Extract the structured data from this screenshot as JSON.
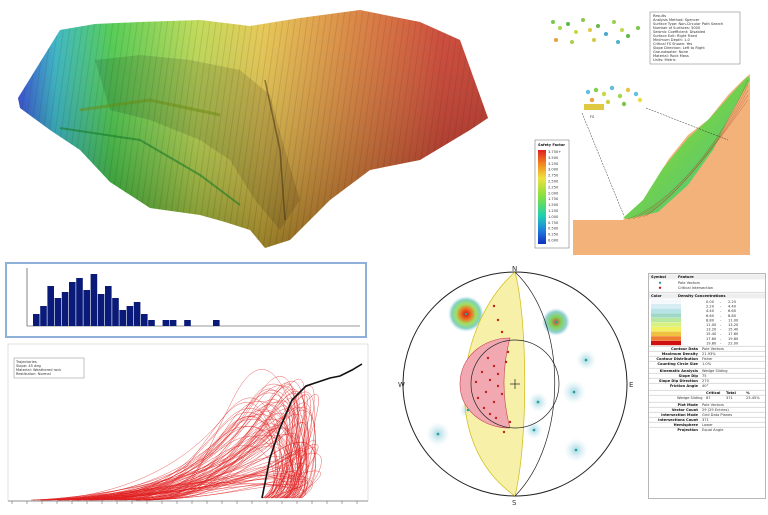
{
  "colors": {
    "terrain_low": "#1a3fd0",
    "terrain_mid": "#e0d84a",
    "terrain_high": "#c8321a",
    "soil": "#f2b27a",
    "histogram_bar": "#0a1a78",
    "histogram_frame": "#8fb0d8",
    "failure_curves": "#e02020",
    "wedge_fill": "#f7f0a8",
    "pole_zone": "#f2a8b0"
  },
  "slope_section": {
    "legend_title": "Safety Factor",
    "legend_values": [
      "0.000",
      "0.250",
      "0.500",
      "0.750",
      "1.000",
      "1.250",
      "1.500",
      "1.750",
      "2.000",
      "2.250",
      "2.500",
      "2.750",
      "3.000",
      "3.250",
      "3.500",
      "3.750+"
    ],
    "info_lines": [
      "Results",
      "Analysis Method: Spencer",
      "Surface Type: Non-Circular Path Search",
      "Number of Surfaces: 5000",
      "Seismic Coefficient: Disabled",
      "Surface Exit: Right Fixed",
      "Minimum Depth: 1.0",
      "Critical FS Shown: Yes",
      "Slope Direction: Left to Right",
      "Groundwater: None",
      "Material: Rock Mass",
      "Units: Metric"
    ],
    "point_label": "FS"
  },
  "stereonet": {
    "north": "N",
    "south": "S",
    "east": "E",
    "west": "W"
  },
  "stereo_table": {
    "symbol_header": [
      "Symbol",
      "Feature"
    ],
    "symbol_rows": [
      "Pole Vectors",
      "Critical Intersection"
    ],
    "color_header": [
      "Color",
      "Density Concentrations"
    ],
    "density_rows": [
      [
        "0.00",
        "-",
        "2.20"
      ],
      [
        "2.20",
        "-",
        "4.40"
      ],
      [
        "4.40",
        "-",
        "6.60"
      ],
      [
        "6.60",
        "-",
        "8.80"
      ],
      [
        "8.80",
        "-",
        "11.00"
      ],
      [
        "11.00",
        "-",
        "13.20"
      ],
      [
        "13.20",
        "-",
        "15.40"
      ],
      [
        "15.40",
        "-",
        "17.60"
      ],
      [
        "17.60",
        "-",
        "19.80"
      ],
      [
        "19.80",
        "-",
        "22.00"
      ]
    ],
    "contour_rows": [
      [
        "Contour Data",
        "Pole Vectors"
      ],
      [
        "Maximum Density",
        "21.93%"
      ],
      [
        "Contour Distribution",
        "Fisher"
      ],
      [
        "Counting Circle Size",
        "1.0%"
      ]
    ],
    "kinematic_rows": [
      [
        "Kinematic Analysis",
        "Wedge Sliding"
      ],
      [
        "Slope Dip",
        "75"
      ],
      [
        "Slope Dip Direction",
        "270"
      ],
      [
        "Friction Angle",
        "40°"
      ]
    ],
    "critical_header": [
      "",
      "Critical",
      "Total",
      "%"
    ],
    "critical_row": [
      "Wedge Sliding",
      "87",
      "371",
      "23.45%"
    ],
    "plot_rows": [
      [
        "Plot Mode",
        "Pole Vectors"
      ],
      [
        "Vector Count",
        "29 (29 Entries)"
      ],
      [
        "Intersection Mode",
        "Grid Data Planes"
      ],
      [
        "Intersections Count",
        "371"
      ],
      [
        "Hemisphere",
        "Lower"
      ],
      [
        "Projection",
        "Equal Angle"
      ]
    ]
  },
  "runout": {
    "legend_lines": [
      "Trajectories",
      "Slope: 45 deg",
      "Material: Weathered rock",
      "Restitution: Normal"
    ]
  }
}
